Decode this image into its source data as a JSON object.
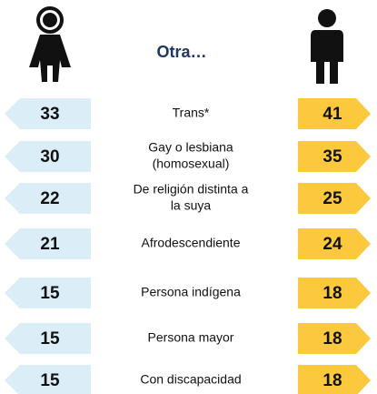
{
  "header": {
    "title": "Otra…"
  },
  "rows": [
    {
      "label": [
        "Trans*"
      ],
      "women": "33",
      "men": "41"
    },
    {
      "label": [
        "Gay o lesbiana",
        "(homosexual)"
      ],
      "women": "30",
      "men": "35"
    },
    {
      "label": [
        "De religión distinta a",
        "la suya"
      ],
      "women": "22",
      "men": "25"
    },
    {
      "label": [
        "Afrodescendiente"
      ],
      "women": "21",
      "men": "24"
    },
    {
      "label": [
        "Persona indígena"
      ],
      "women": "15",
      "men": "18"
    },
    {
      "label": [
        "Persona mayor"
      ],
      "women": "15",
      "men": "18"
    },
    {
      "label": [
        "Con discapacidad"
      ],
      "women": "15",
      "men": "18"
    }
  ]
}
